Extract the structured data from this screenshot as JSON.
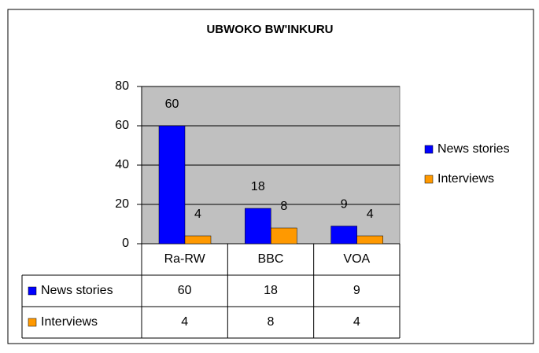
{
  "chart_data": {
    "type": "bar",
    "title": "UBWOKO BW'INKURU",
    "categories": [
      "Ra-RW",
      "BBC",
      "VOA"
    ],
    "series": [
      {
        "name": "News stories",
        "color": "#0000ff",
        "values": [
          60,
          18,
          9
        ]
      },
      {
        "name": "Interviews",
        "color": "#ff9900",
        "values": [
          4,
          8,
          4
        ]
      }
    ],
    "ylim": [
      0,
      80
    ],
    "yticks": [
      0,
      20,
      40,
      60,
      80
    ],
    "grid": true,
    "legend": "right",
    "plot_background": "#c0c0c0"
  }
}
